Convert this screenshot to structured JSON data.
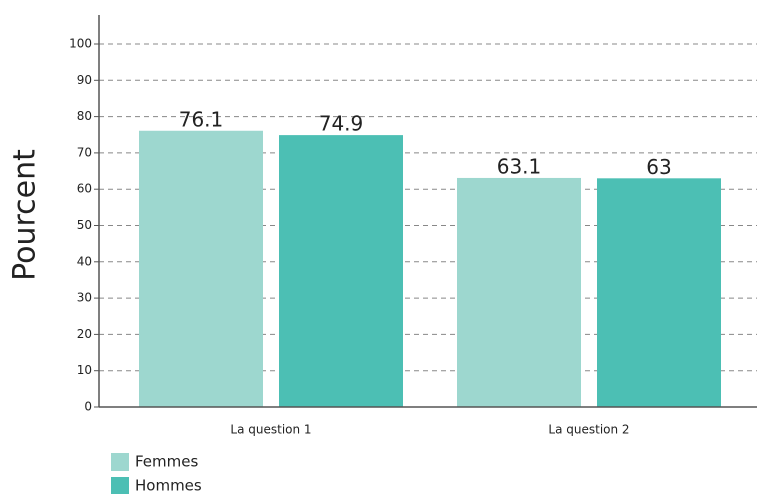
{
  "chart_data": {
    "type": "bar",
    "y_label": "Pourcent",
    "categories": [
      "La question 1",
      "La question 2"
    ],
    "series": [
      {
        "name": "Femmes",
        "color": "#9dd7cf",
        "values": [
          76.1,
          63.1
        ]
      },
      {
        "name": "Hommes",
        "color": "#4cbfb4",
        "values": [
          74.9,
          63
        ]
      }
    ],
    "ylim": [
      0,
      100
    ],
    "yticks": [
      0,
      10,
      20,
      30,
      40,
      50,
      60,
      70,
      80,
      90,
      100
    ],
    "grid": true,
    "legend": "bottom-left"
  }
}
